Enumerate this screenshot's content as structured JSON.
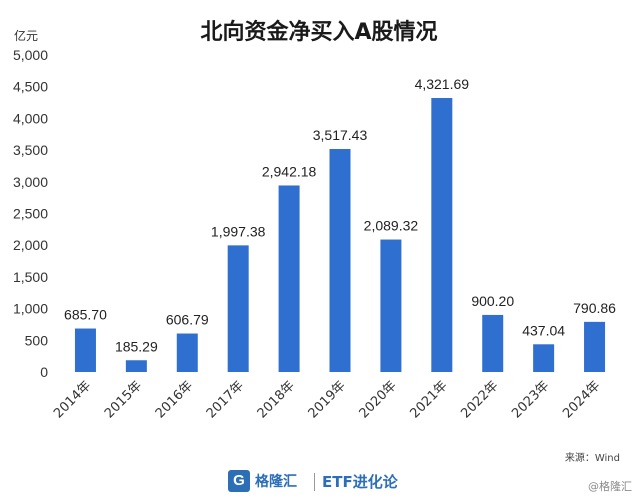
{
  "chart_data": {
    "type": "bar",
    "title": "北向资金净买入A股情况",
    "unit_label": "亿元",
    "categories": [
      "2014年",
      "2015年",
      "2016年",
      "2017年",
      "2018年",
      "2019年",
      "2020年",
      "2021年",
      "2022年",
      "2023年",
      "2024年"
    ],
    "values": [
      685.7,
      185.29,
      606.79,
      1997.38,
      2942.18,
      3517.43,
      2089.32,
      4321.69,
      900.2,
      437.04,
      790.86
    ],
    "value_labels": [
      "685.70",
      "185.29",
      "606.79",
      "1,997.38",
      "2,942.18",
      "3,517.43",
      "2,089.32",
      "4,321.69",
      "900.20",
      "437.04",
      "790.86"
    ],
    "ylim": [
      0,
      5000
    ],
    "yticks": [
      0,
      500,
      1000,
      1500,
      2000,
      2500,
      3000,
      3500,
      4000,
      4500,
      5000
    ],
    "ytick_labels": [
      "0",
      "500",
      "1,000",
      "1,500",
      "2,000",
      "2,500",
      "3,000",
      "3,500",
      "4,000",
      "4,500",
      "5,000"
    ],
    "grid": false,
    "bar_color": "#2f6fd0"
  },
  "source": "来源：Wind",
  "footer": {
    "logo_glyph": "G",
    "logo_text": "格隆汇",
    "brand": "ETF进化论",
    "watermark": "@格隆汇"
  }
}
